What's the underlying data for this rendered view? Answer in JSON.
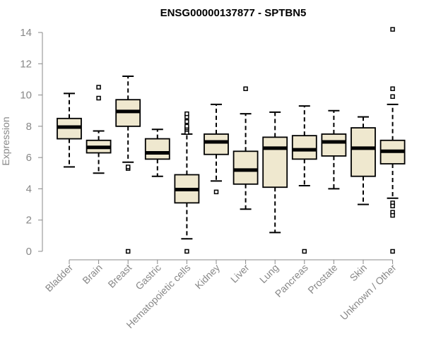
{
  "chart_data": {
    "type": "box",
    "title": "ENSG00000137877 - SPTBN5",
    "ylabel": "Expression",
    "xlabel": "",
    "ylim": [
      0,
      14
    ],
    "yticks": [
      0,
      2,
      4,
      6,
      8,
      10,
      12,
      14
    ],
    "grid": false,
    "colors": {
      "box_fill": "#efe8cf",
      "median": "#000000",
      "axis": "#888888"
    },
    "categories": [
      "Bladder",
      "Brain",
      "Breast",
      "Gastric",
      "Hematopoietic cells",
      "Kidney",
      "Liver",
      "Lung",
      "Pancreas",
      "Prostate",
      "Skin",
      "Unknown / Other"
    ],
    "boxes": [
      {
        "name": "Bladder",
        "min": 5.4,
        "q1": 7.2,
        "median": 7.95,
        "q3": 8.5,
        "max": 10.1,
        "outliers": []
      },
      {
        "name": "Brain",
        "min": 5.0,
        "q1": 6.3,
        "median": 6.65,
        "q3": 7.1,
        "max": 7.7,
        "outliers": [
          9.8,
          10.5
        ]
      },
      {
        "name": "Breast",
        "min": 5.7,
        "q1": 8.0,
        "median": 8.95,
        "q3": 9.7,
        "max": 11.2,
        "outliers": [
          5.3,
          5.4,
          0.0
        ]
      },
      {
        "name": "Gastric",
        "min": 4.8,
        "q1": 5.9,
        "median": 6.3,
        "q3": 7.2,
        "max": 7.8,
        "outliers": []
      },
      {
        "name": "Hematopoietic cells",
        "min": 0.8,
        "q1": 3.1,
        "median": 3.95,
        "q3": 4.9,
        "max": 7.5,
        "outliers": [
          7.6,
          7.8,
          7.9,
          8.0,
          8.3,
          8.6,
          8.8,
          0.0
        ]
      },
      {
        "name": "Kidney",
        "min": 4.5,
        "q1": 6.2,
        "median": 7.0,
        "q3": 7.5,
        "max": 9.4,
        "outliers": [
          3.8
        ]
      },
      {
        "name": "Liver",
        "min": 2.7,
        "q1": 4.3,
        "median": 5.2,
        "q3": 6.4,
        "max": 8.8,
        "outliers": [
          10.4
        ]
      },
      {
        "name": "Lung",
        "min": 1.2,
        "q1": 4.1,
        "median": 6.6,
        "q3": 7.3,
        "max": 8.9,
        "outliers": []
      },
      {
        "name": "Pancreas",
        "min": 4.2,
        "q1": 5.9,
        "median": 6.5,
        "q3": 7.4,
        "max": 9.3,
        "outliers": [
          0.0
        ]
      },
      {
        "name": "Prostate",
        "min": 4.0,
        "q1": 6.1,
        "median": 7.0,
        "q3": 7.5,
        "max": 9.0,
        "outliers": []
      },
      {
        "name": "Skin",
        "min": 3.0,
        "q1": 4.8,
        "median": 6.6,
        "q3": 7.9,
        "max": 8.6,
        "outliers": []
      },
      {
        "name": "Unknown / Other",
        "min": 3.4,
        "q1": 5.6,
        "median": 6.4,
        "q3": 7.1,
        "max": 9.4,
        "outliers": [
          14.2,
          10.4,
          9.9,
          3.1,
          2.9,
          2.5,
          2.3,
          0.0
        ]
      }
    ]
  }
}
